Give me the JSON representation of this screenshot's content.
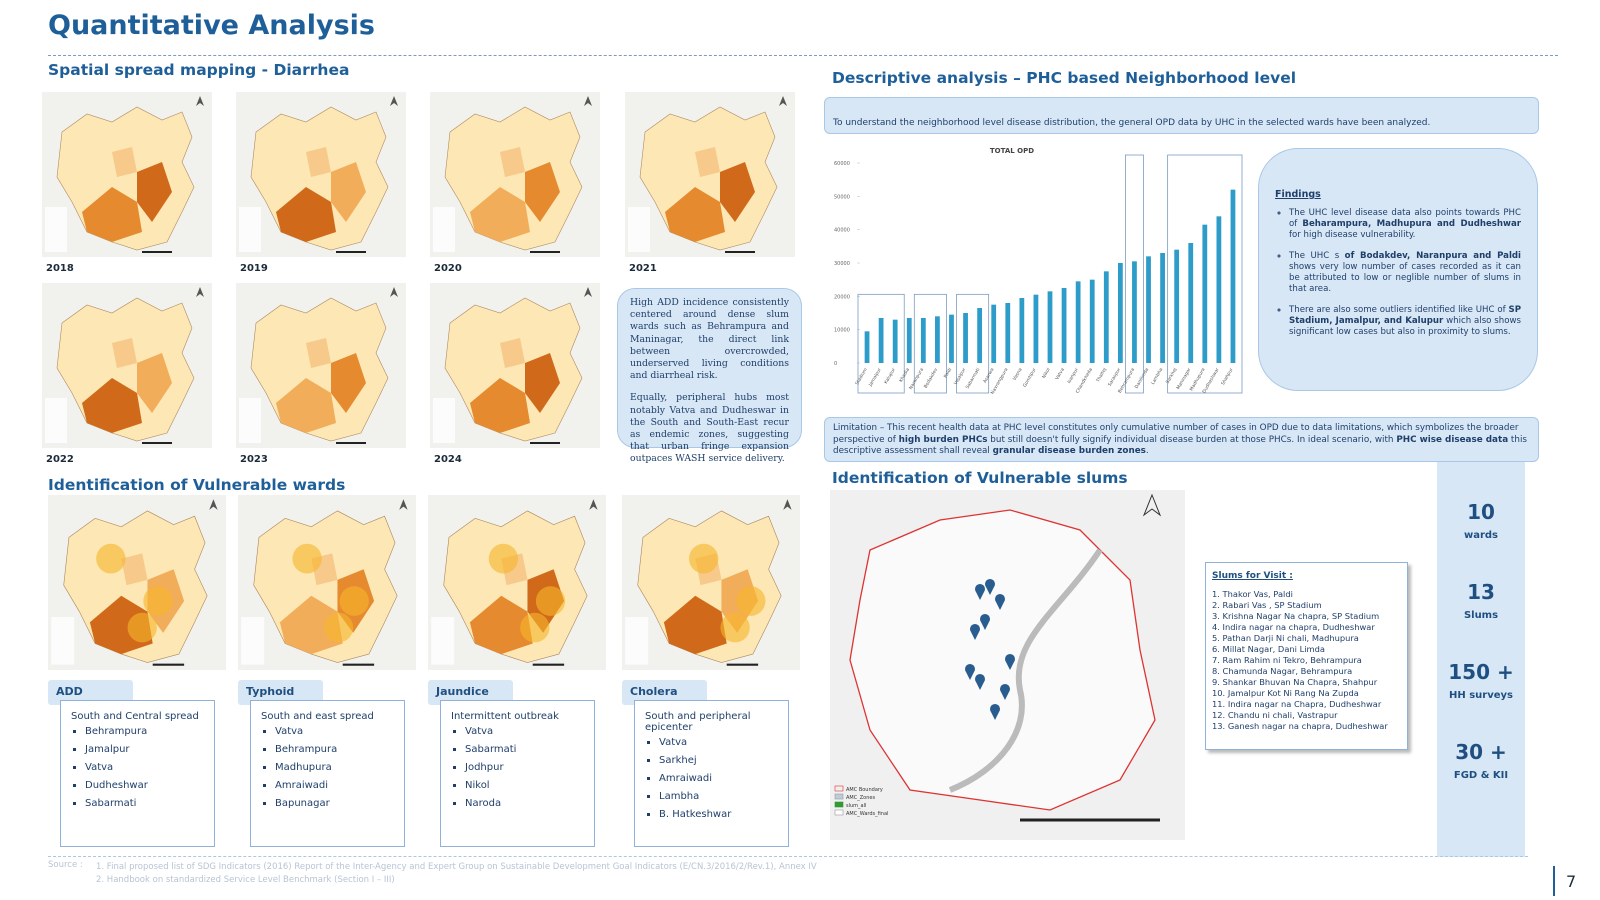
{
  "header": {
    "title": "Quantitative Analysis"
  },
  "spatial": {
    "title": "Spatial spread mapping - Diarrhea",
    "years": [
      "2018",
      "2019",
      "2020",
      "2021",
      "2022",
      "2023",
      "2024"
    ],
    "callout": [
      "High ADD incidence consistently centered around dense slum wards such as Behrampura and Maninagar, the direct link between overcrowded, underserved living conditions and diarrheal risk.",
      "Equally, peripheral hubs most notably Vatva and Dudheswar in the South and South-East recur as endemic zones, suggesting that urban fringe expansion outpaces WASH service delivery."
    ]
  },
  "wards": {
    "title": "Identification of Vulnerable wards",
    "diseases": [
      {
        "name": "ADD",
        "summary": "South and Central spread",
        "items": [
          "Behrampura",
          "Jamalpur",
          "Vatva",
          "Dudheshwar",
          "Sabarmati"
        ]
      },
      {
        "name": "Typhoid",
        "summary": "South and east spread",
        "items": [
          "Vatva",
          "Behrampura",
          "Madhupura",
          "Amraiwadi",
          "Bapunagar"
        ]
      },
      {
        "name": "Jaundice",
        "summary": "Intermittent outbreak",
        "items": [
          "Vatva",
          "Sabarmati",
          "Jodhpur",
          "Nikol",
          "Naroda"
        ]
      },
      {
        "name": "Cholera",
        "summary": "South and peripheral epicenter",
        "items": [
          "Vatva",
          "Sarkhej",
          "Amraiwadi",
          "Lambha",
          "B. Hatkeshwar"
        ]
      }
    ]
  },
  "descriptive": {
    "title": "Descriptive analysis – PHC based Neighborhood level",
    "intro": "To understand the neighborhood level disease distribution, the general OPD data by UHC in the selected wards have been analyzed.",
    "findings_title": "Findings",
    "findings": [
      [
        "The UHC level disease data also points towards PHC of ",
        "Beharampura, Madhupura and Dudheshwar",
        " for high disease vulnerability."
      ],
      [
        "The UHC s ",
        "of Bodakdev, Naranpura and Paldi",
        " shows very low number of cases recorded as it can be attributed to low or neglible number of slums in that area."
      ],
      [
        "There are also some outliers identified like UHC of ",
        "SP Stadium, Jamalpur, and Kalupur",
        " which also shows significant low cases but also in proximity to slums."
      ]
    ],
    "limitation": [
      "Limitation – This recent health data at PHC level constitutes only cumulative number of cases in OPD due to data limitations, which symbolizes the broader perspective of ",
      "high burden PHCs",
      " but still doesn't fully signify individual disease burden at those PHCs. In ideal scenario, with ",
      "PHC wise disease data",
      " this descriptive assessment shall reveal ",
      "granular disease burden zones",
      "."
    ]
  },
  "chart_data": {
    "type": "bar",
    "title": "TOTAL OPD",
    "color": "#2e9cc9",
    "categories": [
      "Stadium",
      "Jamalpur",
      "Kalupur",
      "Khadia",
      "Naranpura",
      "Bodakdev",
      "Paldi",
      "Vejalpur",
      "Sabarmati",
      "Asarwa",
      "Navrangpura",
      "Vasna",
      "Gomtipur",
      "Nikol",
      "Vatva",
      "Isanpur",
      "Chandkheda",
      "Thaltej",
      "Saraspur",
      "Behrampura",
      "Danilimda",
      "Lambha",
      "Sarkhej",
      "Maninagar",
      "Madhupura",
      "Dudheshwar",
      "Shahpur"
    ],
    "values": [
      9500,
      13500,
      13000,
      13500,
      13500,
      14000,
      14500,
      15000,
      16500,
      17500,
      18000,
      19500,
      20500,
      21500,
      22500,
      24500,
      25000,
      27500,
      30000,
      30500,
      32000,
      33000,
      34000,
      36000,
      41500,
      44000,
      52000
    ],
    "ylim": [
      0,
      60000
    ],
    "yticks": [
      0,
      10000,
      20000,
      30000,
      40000,
      50000,
      60000
    ],
    "grid": false
  },
  "slums": {
    "title": "Identification of Vulnerable slums",
    "list_title": "Slums for Visit :",
    "list": [
      "1.  Thakor Vas, Paldi",
      "2.  Rabari Vas , SP Stadium",
      "3.  Krishna Nagar Na chapra, SP Stadium",
      "4.  Indira nagar na chapra, Dudheshwar",
      "5.  Pathan Darji Ni chali, Madhupura",
      "6.  Millat Nagar, Dani Limda",
      "7.  Ram Rahim ni Tekro, Behrampura",
      "8.  Chamunda Nagar, Behrampura",
      "9.  Shankar Bhuvan Na Chapra, Shahpur",
      "10. Jamalpur Kot Ni Rang Na Zupda",
      "11. Indira nagar na Chapra, Dudheshwar",
      "12. Chandu ni chali, Vastrapur",
      "13. Ganesh nagar na chapra, Dudheshwar"
    ],
    "legend": [
      "AMC Boundary",
      "AMC_Zones",
      "slum_all",
      "AMC_Wards_final"
    ]
  },
  "stats": [
    {
      "value": "10",
      "label": "wards"
    },
    {
      "value": "13",
      "label": "Slums"
    },
    {
      "value": "150 +",
      "label": "HH surveys"
    },
    {
      "value": "30 +",
      "label": "FGD & KII"
    }
  ],
  "source": {
    "label": "Source :",
    "items": [
      "1.   Final proposed list of SDG Indicators (2016) Report of the Inter-Agency and Expert Group on Sustainable Development Goal Indicators (E/CN.3/2016/2/Rev.1), Annex IV",
      "2.   Handbook on standardized Service Level Benchmark (Section I – III)"
    ]
  },
  "page_number": "7"
}
